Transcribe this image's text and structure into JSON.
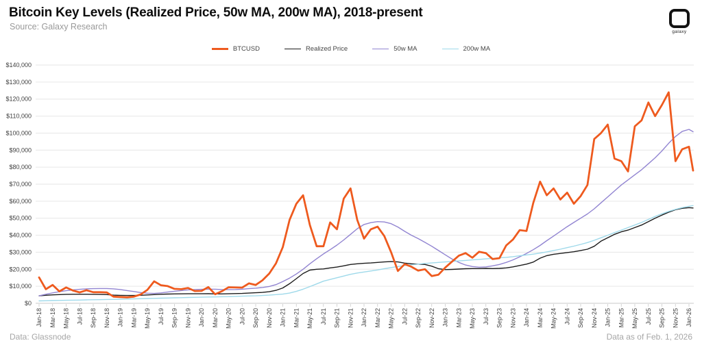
{
  "header": {
    "title": "Bitcoin Key Levels (Realized Price, 50w MA, 200w MA), 2018-present",
    "source": "Source: Galaxy Research"
  },
  "logo": {
    "label": "galaxy"
  },
  "footer": {
    "left": "Data: Glassnode",
    "right": "Data as of Feb. 1, 2026"
  },
  "chart_data": {
    "type": "line",
    "title": "Bitcoin Key Levels (Realized Price, 50w MA, 200w MA), 2018-present",
    "xlabel": "",
    "ylabel": "",
    "grid": "horizontal",
    "legend_position": "top-center",
    "ylim": [
      0,
      140000
    ],
    "y_ticks": [
      0,
      10000,
      20000,
      30000,
      40000,
      50000,
      60000,
      70000,
      80000,
      90000,
      100000,
      110000,
      120000,
      130000,
      140000
    ],
    "y_tick_labels": [
      "$0",
      "$10,000",
      "$20,000",
      "$30,000",
      "$40,000",
      "$50,000",
      "$60,000",
      "$70,000",
      "$80,000",
      "$90,000",
      "$100,000",
      "$110,000",
      "$120,000",
      "$130,000",
      "$140,000"
    ],
    "x_tick_labels": [
      "Jan-18",
      "Mar-18",
      "May-18",
      "Jul-18",
      "Sep-18",
      "Nov-18",
      "Jan-19",
      "Mar-19",
      "May-19",
      "Jul-19",
      "Sep-19",
      "Nov-19",
      "Jan-20",
      "Mar-20",
      "May-20",
      "Jul-20",
      "Sep-20",
      "Nov-20",
      "Jan-21",
      "Mar-21",
      "May-21",
      "Jul-21",
      "Sep-21",
      "Nov-21",
      "Jan-22",
      "Mar-22",
      "May-22",
      "Jul-22",
      "Sep-22",
      "Nov-22",
      "Jan-23",
      "Mar-23",
      "May-23",
      "Jul-23",
      "Sep-23",
      "Nov-23",
      "Jan-24",
      "Mar-24",
      "May-24",
      "Jul-24",
      "Sep-24",
      "Nov-24",
      "Jan-25",
      "Mar-25",
      "May-25",
      "Jul-25",
      "Sep-25",
      "Nov-25",
      "Jan-26"
    ],
    "months": [
      "Jan-18",
      "Feb-18",
      "Mar-18",
      "Apr-18",
      "May-18",
      "Jun-18",
      "Jul-18",
      "Aug-18",
      "Sep-18",
      "Oct-18",
      "Nov-18",
      "Dec-18",
      "Jan-19",
      "Feb-19",
      "Mar-19",
      "Apr-19",
      "May-19",
      "Jun-19",
      "Jul-19",
      "Aug-19",
      "Sep-19",
      "Oct-19",
      "Nov-19",
      "Dec-19",
      "Jan-20",
      "Feb-20",
      "Mar-20",
      "Apr-20",
      "May-20",
      "Jun-20",
      "Jul-20",
      "Aug-20",
      "Sep-20",
      "Oct-20",
      "Nov-20",
      "Dec-20",
      "Jan-21",
      "Feb-21",
      "Mar-21",
      "Apr-21",
      "May-21",
      "Jun-21",
      "Jul-21",
      "Aug-21",
      "Sep-21",
      "Oct-21",
      "Nov-21",
      "Dec-21",
      "Jan-22",
      "Feb-22",
      "Mar-22",
      "Apr-22",
      "May-22",
      "Jun-22",
      "Jul-22",
      "Aug-22",
      "Sep-22",
      "Oct-22",
      "Nov-22",
      "Dec-22",
      "Jan-23",
      "Feb-23",
      "Mar-23",
      "Apr-23",
      "May-23",
      "Jun-23",
      "Jul-23",
      "Aug-23",
      "Sep-23",
      "Oct-23",
      "Nov-23",
      "Dec-23",
      "Jan-24",
      "Feb-24",
      "Mar-24",
      "Apr-24",
      "May-24",
      "Jun-24",
      "Jul-24",
      "Aug-24",
      "Sep-24",
      "Oct-24",
      "Nov-24",
      "Dec-24",
      "Jan-25",
      "Feb-25",
      "Mar-25",
      "Apr-25",
      "May-25",
      "Jun-25",
      "Jul-25",
      "Aug-25",
      "Sep-25",
      "Oct-25",
      "Nov-25",
      "Dec-25",
      "Jan-26",
      "Feb-26"
    ],
    "series": [
      {
        "name": "BTCUSD",
        "color": "#ee5a1e",
        "width": 2.8,
        "values": [
          15200,
          8300,
          10800,
          7000,
          9300,
          7500,
          6400,
          7700,
          6500,
          6500,
          6350,
          3900,
          3700,
          3500,
          3900,
          5200,
          7900,
          12900,
          10600,
          10100,
          8500,
          8300,
          9000,
          7200,
          7300,
          9500,
          5300,
          7100,
          9400,
          9300,
          9200,
          11700,
          10800,
          13500,
          17500,
          23500,
          33000,
          49000,
          58500,
          63500,
          46000,
          33500,
          33500,
          47500,
          43500,
          61500,
          67500,
          49000,
          38000,
          43500,
          45000,
          39500,
          30000,
          19000,
          23000,
          21500,
          19200,
          20000,
          16000,
          16800,
          21000,
          24500,
          28000,
          29500,
          26800,
          30300,
          29500,
          26000,
          26500,
          34000,
          37500,
          43000,
          42500,
          59000,
          71500,
          63500,
          67500,
          61000,
          65000,
          58500,
          63000,
          69500,
          96500,
          100000,
          105000,
          85000,
          83500,
          77500,
          104000,
          107500,
          118000,
          110000,
          116500,
          124000,
          83500,
          90500,
          92000,
          78000
        ]
      },
      {
        "name": "Realized Price",
        "color": "#1b1b1b",
        "width": 1.4,
        "values": [
          4400,
          4700,
          4950,
          5100,
          5250,
          5300,
          5300,
          5300,
          5250,
          5200,
          5100,
          4800,
          4650,
          4600,
          4600,
          4700,
          4900,
          5100,
          5300,
          5450,
          5500,
          5550,
          5600,
          5600,
          5600,
          5650,
          5500,
          5500,
          5600,
          5700,
          5800,
          6000,
          6200,
          6400,
          6800,
          7600,
          9000,
          11500,
          14500,
          17500,
          19500,
          20000,
          20200,
          20800,
          21300,
          22000,
          22800,
          23200,
          23500,
          23700,
          24000,
          24300,
          24500,
          24300,
          23600,
          23200,
          23000,
          22800,
          21800,
          20300,
          19800,
          19900,
          20100,
          20300,
          20400,
          20400,
          20500,
          20400,
          20500,
          20800,
          21400,
          22200,
          23000,
          24200,
          26500,
          28000,
          28800,
          29300,
          29800,
          30300,
          31000,
          31800,
          33500,
          36500,
          38500,
          40500,
          42000,
          43000,
          44500,
          46000,
          48000,
          50000,
          51800,
          53500,
          55000,
          55800,
          56200,
          56000
        ]
      },
      {
        "name": "50w MA",
        "color": "#9184d1",
        "width": 1.4,
        "values": [
          4400,
          5300,
          6100,
          6800,
          7400,
          7900,
          8200,
          8500,
          8600,
          8700,
          8700,
          8500,
          8100,
          7500,
          6900,
          6300,
          5900,
          5800,
          6100,
          6600,
          7100,
          7500,
          7900,
          8100,
          8200,
          8300,
          8300,
          8100,
          8000,
          8100,
          8300,
          8600,
          8900,
          9300,
          9900,
          11000,
          12800,
          14800,
          17200,
          20000,
          23200,
          26200,
          29000,
          31500,
          34200,
          37200,
          40500,
          43800,
          46300,
          47400,
          48000,
          47800,
          46800,
          44800,
          42300,
          40000,
          38000,
          35800,
          33500,
          31000,
          28500,
          26000,
          24000,
          22500,
          21600,
          21200,
          21400,
          22000,
          22800,
          24000,
          25500,
          27300,
          29300,
          31500,
          34000,
          36800,
          39500,
          42300,
          45000,
          47500,
          50000,
          52500,
          55500,
          59000,
          62500,
          66000,
          69500,
          72500,
          75500,
          78500,
          82000,
          85500,
          89500,
          94000,
          98000,
          101000,
          102200,
          100800
        ]
      },
      {
        "name": "200w MA",
        "color": "#9ed9ea",
        "width": 1.4,
        "values": [
          1400,
          1500,
          1600,
          1700,
          1750,
          1850,
          1900,
          2000,
          2100,
          2150,
          2250,
          2300,
          2400,
          2500,
          2600,
          2700,
          2800,
          2900,
          3000,
          3100,
          3200,
          3300,
          3400,
          3500,
          3600,
          3700,
          3750,
          3850,
          3900,
          4050,
          4200,
          4300,
          4400,
          4600,
          4800,
          5100,
          5400,
          6000,
          7000,
          8300,
          9800,
          11400,
          13000,
          14000,
          15000,
          16000,
          17000,
          17800,
          18400,
          19000,
          19600,
          20300,
          21000,
          21600,
          22200,
          22600,
          23000,
          23400,
          23700,
          24000,
          24300,
          24600,
          24900,
          25200,
          25500,
          25800,
          26100,
          26400,
          26700,
          27000,
          27400,
          27900,
          28400,
          28900,
          29500,
          30200,
          31000,
          31800,
          32700,
          33600,
          34600,
          35700,
          37000,
          38500,
          40000,
          41500,
          43000,
          44500,
          46000,
          47500,
          49300,
          51000,
          52600,
          54000,
          55200,
          56200,
          57000,
          57400
        ]
      }
    ],
    "colors": {
      "grid": "#e6e6e6",
      "baseline": "#c9c9c9",
      "tick_text": "#3d3d3d"
    }
  }
}
